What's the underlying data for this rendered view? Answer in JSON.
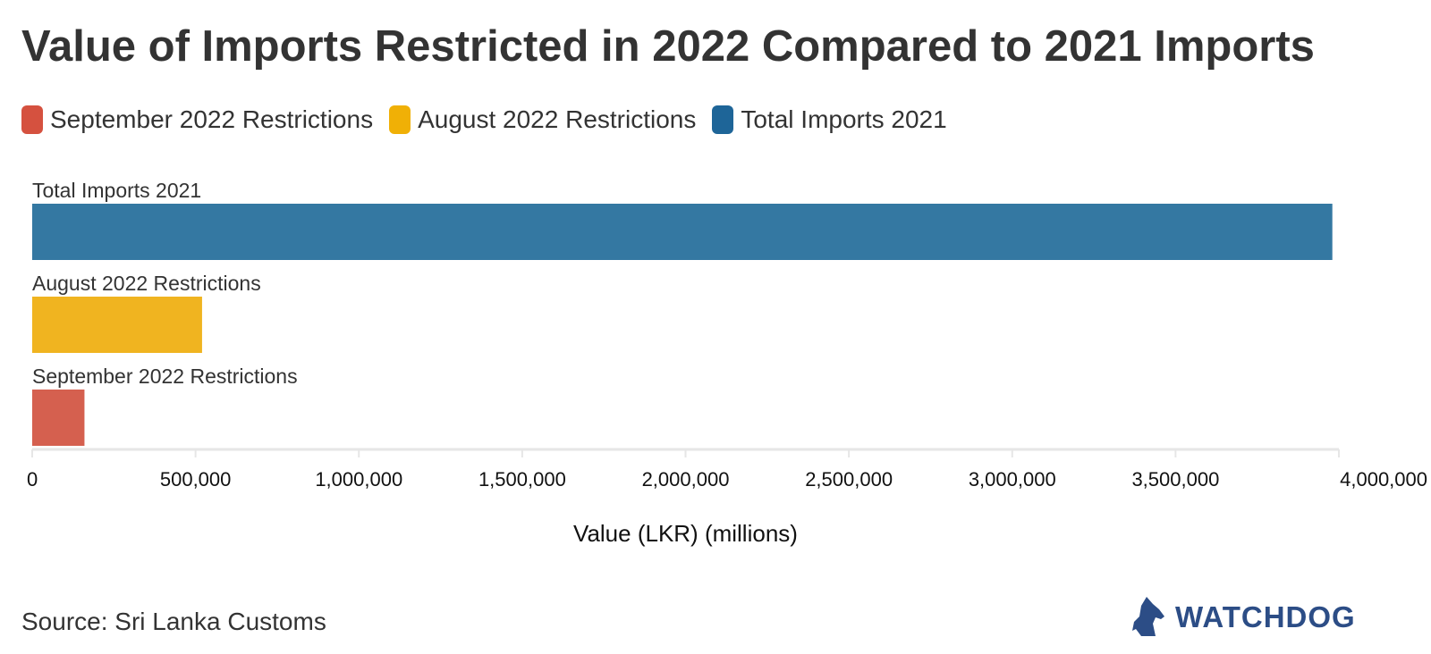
{
  "chart_data": {
    "type": "bar",
    "orientation": "horizontal",
    "title": "Value of Imports Restricted in 2022 Compared to 2021 Imports",
    "xlabel": "Value (LKR) (millions)",
    "xlim": [
      0,
      4000000
    ],
    "x_ticks": [
      0,
      500000,
      1000000,
      1500000,
      2000000,
      2500000,
      3000000,
      3500000,
      4000000
    ],
    "x_tick_labels": [
      "0",
      "500,000",
      "1,000,000",
      "1,500,000",
      "2,000,000",
      "2,500,000",
      "3,000,000",
      "3,500,000",
      "4,000,000"
    ],
    "categories": [
      "Total Imports 2021",
      "August 2022 Restrictions",
      "September 2022 Restrictions"
    ],
    "values": [
      3980000,
      520000,
      160000
    ],
    "colors": [
      "#3478a2",
      "#f0b420",
      "#d5604f"
    ],
    "grid": false,
    "legend_placement": "top-left",
    "legend": [
      {
        "label": "September 2022 Restrictions",
        "color": "#d5513f"
      },
      {
        "label": "August 2022 Restrictions",
        "color": "#f0b006"
      },
      {
        "label": "Total Imports 2021",
        "color": "#1e6598"
      }
    ]
  },
  "source": "Source: Sri Lanka Customs",
  "logo": {
    "text": "WATCHDOG",
    "icon": "dog-head-icon",
    "color": "#2c4d86"
  }
}
